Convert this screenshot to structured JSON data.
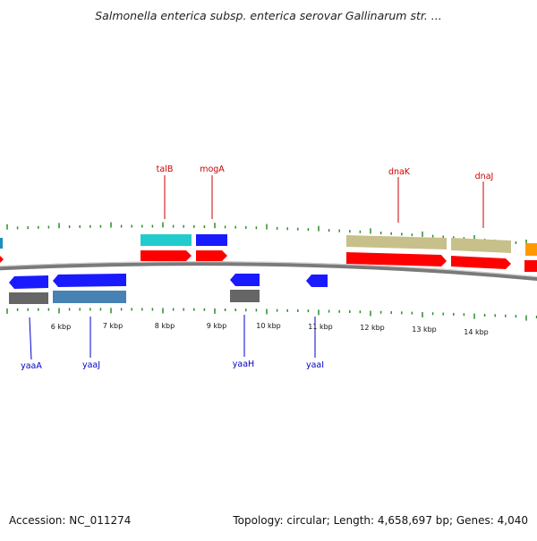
{
  "title": "Salmonella enterica subsp. enterica serovar Gallinarum str. ...",
  "footer": {
    "accession": "Accession: NC_011274",
    "summary": "Topology: circular; Length: 4,658,697 bp; Genes: 4,040"
  },
  "ruler": {
    "labels": [
      "6 kbp",
      "7 kbp",
      "8 kbp",
      "9 kbp",
      "10 kbp",
      "11 kbp",
      "12 kbp",
      "13 kbp",
      "14 kbp"
    ]
  },
  "labels_top": [
    "talB",
    "mogA",
    "dnaK",
    "dnaJ"
  ],
  "labels_bottom": [
    "yaaA",
    "yaaJ",
    "yaaH",
    "yaaI"
  ],
  "colors": {
    "tick": "#2e8b2e",
    "backbone": "#7a7a7a",
    "top_label": "#cc0000",
    "bottom_label": "#0000cc",
    "cds": "#ff0000",
    "gene_blue": "#1a1aff",
    "gene_teal": "#22cccc",
    "gene_olive": "#c8c08a",
    "gene_steel": "#4682b4",
    "gene_gray": "#666666",
    "gene_orange": "#ff9900"
  }
}
